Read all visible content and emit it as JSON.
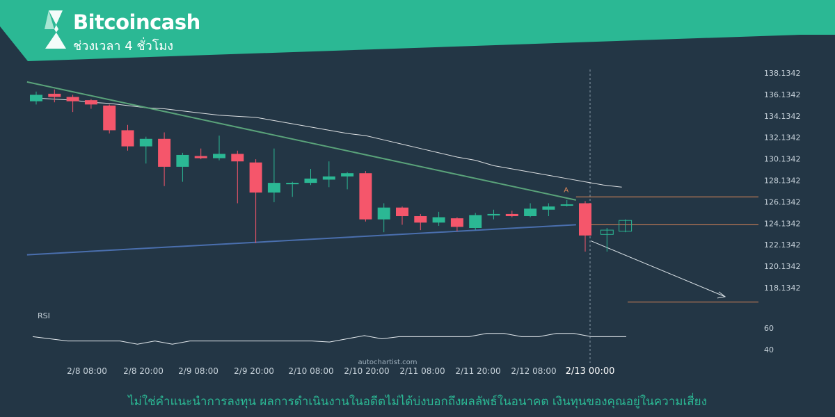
{
  "header": {
    "title": "Bitcoincash",
    "subtitle": "ช่วงเวลา 4 ชั่วโมง"
  },
  "watermark": "autochartist.com",
  "disclaimer": "ไม่ใช่คำแนะนำการลงทุน ผลการดำเนินงานในอดีตไม่ได้บ่งบอกถึงผลลัพธ์ในอนาคต เงินทุนของคุณอยู่ในความเสี่ยง",
  "colors": {
    "background": "#233645",
    "banner": "#2bb894",
    "up": "#2bb894",
    "down": "#f5566b",
    "resistance": "#5aa37a",
    "support": "#4a6fae",
    "level": "#e0895a",
    "moving_average": "#ffffff"
  },
  "chart_data": {
    "type": "candlestick",
    "y_ticks": [
      "138.1342",
      "136.1342",
      "134.1342",
      "132.1342",
      "130.1342",
      "128.1342",
      "126.1342",
      "124.1342",
      "122.1342",
      "120.1342",
      "118.1342"
    ],
    "ylim": [
      116.8,
      138.2
    ],
    "x_ticks": [
      "2/8 08:00",
      "2/8 20:00",
      "2/9 08:00",
      "2/9 20:00",
      "2/10 08:00",
      "2/10 20:00",
      "2/11 08:00",
      "2/11 20:00",
      "2/12 08:00",
      "2/13 00:00"
    ],
    "highlighted_x_tick": "2/13 00:00",
    "candles": [
      {
        "o": 135.5,
        "h": 136.4,
        "l": 135.2,
        "c": 136.1
      },
      {
        "o": 136.2,
        "h": 136.6,
        "l": 135.4,
        "c": 135.9
      },
      {
        "o": 135.9,
        "h": 136.1,
        "l": 134.5,
        "c": 135.5
      },
      {
        "o": 135.6,
        "h": 135.7,
        "l": 134.8,
        "c": 135.2
      },
      {
        "o": 135.1,
        "h": 135.2,
        "l": 132.5,
        "c": 132.8
      },
      {
        "o": 132.8,
        "h": 133.3,
        "l": 130.9,
        "c": 131.3
      },
      {
        "o": 131.3,
        "h": 132.2,
        "l": 129.7,
        "c": 132.0
      },
      {
        "o": 132.0,
        "h": 132.6,
        "l": 127.6,
        "c": 129.4
      },
      {
        "o": 129.4,
        "h": 130.7,
        "l": 128.0,
        "c": 130.5
      },
      {
        "o": 130.4,
        "h": 131.1,
        "l": 130.1,
        "c": 130.2
      },
      {
        "o": 130.2,
        "h": 132.3,
        "l": 130.0,
        "c": 130.6
      },
      {
        "o": 130.6,
        "h": 130.9,
        "l": 126.0,
        "c": 129.9
      },
      {
        "o": 129.8,
        "h": 130.1,
        "l": 122.3,
        "c": 127.0
      },
      {
        "o": 127.0,
        "h": 131.1,
        "l": 126.1,
        "c": 127.9
      },
      {
        "o": 127.9,
        "h": 128.0,
        "l": 126.6,
        "c": 127.9
      },
      {
        "o": 127.9,
        "h": 129.2,
        "l": 127.7,
        "c": 128.3
      },
      {
        "o": 128.2,
        "h": 129.9,
        "l": 127.5,
        "c": 128.5
      },
      {
        "o": 128.5,
        "h": 128.9,
        "l": 127.3,
        "c": 128.8
      },
      {
        "o": 128.8,
        "h": 129.0,
        "l": 124.3,
        "c": 124.5
      },
      {
        "o": 124.5,
        "h": 126.0,
        "l": 123.3,
        "c": 125.6
      },
      {
        "o": 125.6,
        "h": 125.7,
        "l": 124.0,
        "c": 124.8
      },
      {
        "o": 124.8,
        "h": 125.0,
        "l": 123.5,
        "c": 124.2
      },
      {
        "o": 124.2,
        "h": 125.2,
        "l": 123.9,
        "c": 124.7
      },
      {
        "o": 124.6,
        "h": 124.7,
        "l": 123.4,
        "c": 123.8
      },
      {
        "o": 123.7,
        "h": 125.1,
        "l": 123.5,
        "c": 124.9
      },
      {
        "o": 124.9,
        "h": 125.4,
        "l": 124.5,
        "c": 125.0
      },
      {
        "o": 125.0,
        "h": 125.3,
        "l": 124.7,
        "c": 124.8
      },
      {
        "o": 124.8,
        "h": 126.0,
        "l": 124.7,
        "c": 125.5
      },
      {
        "o": 125.4,
        "h": 126.0,
        "l": 124.8,
        "c": 125.7
      },
      {
        "o": 125.8,
        "h": 126.3,
        "l": 125.7,
        "c": 125.9
      },
      {
        "o": 126.0,
        "h": 126.2,
        "l": 121.5,
        "c": 123.0
      }
    ],
    "projected_candles": [
      {
        "o": 123.1,
        "h": 123.7,
        "l": 121.5,
        "c": 123.5
      },
      {
        "o": 123.4,
        "h": 124.5,
        "l": 123.3,
        "c": 124.4
      }
    ],
    "moving_average": [
      135.8,
      135.7,
      135.6,
      135.4,
      135.3,
      135.1,
      134.9,
      134.8,
      134.6,
      134.4,
      134.2,
      134.1,
      134.0,
      133.7,
      133.4,
      133.1,
      132.8,
      132.5,
      132.3,
      131.9,
      131.5,
      131.1,
      130.7,
      130.3,
      130.0,
      129.5,
      129.2,
      128.9,
      128.6,
      128.3,
      128.0,
      127.7,
      127.5
    ],
    "resistance_line": {
      "start": {
        "i": -0.5,
        "y": 137.3
      },
      "end": {
        "i": 29.5,
        "y": 126.3
      }
    },
    "support_line": {
      "start": {
        "i": -0.5,
        "y": 121.2
      },
      "end": {
        "i": 29.5,
        "y": 124.0
      }
    },
    "levels": [
      126.6,
      124.0,
      116.8
    ],
    "projection": {
      "from": {
        "i": 30.5,
        "y": 122.5
      },
      "to": {
        "i": 37.0,
        "y": 117.3
      }
    },
    "marker": {
      "label": "A",
      "i": 29.0,
      "y": 126.9
    },
    "indicator": {
      "name": "RSI",
      "ticks": [
        "60",
        "40"
      ],
      "ylim": [
        35,
        75
      ],
      "values": [
        52,
        50,
        48,
        48,
        48,
        48,
        45,
        48,
        45,
        48,
        48,
        48,
        48,
        48,
        48,
        48,
        48,
        47,
        50,
        53,
        50,
        52,
        52,
        52,
        52,
        52,
        55,
        55,
        52,
        52,
        55,
        55,
        52,
        52,
        52
      ]
    }
  }
}
